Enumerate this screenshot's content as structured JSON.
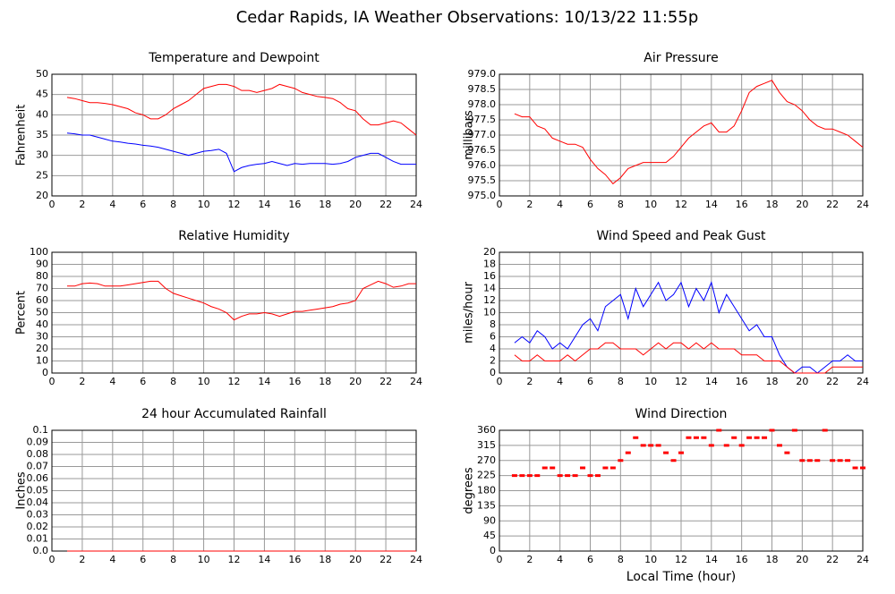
{
  "title": "Cedar Rapids, IA Weather Observations: 10/13/22 11:55p",
  "chart_data": [
    {
      "type": "line",
      "title": "Temperature and Dewpoint",
      "ylabel": "Fahrenheit",
      "xlim": [
        0,
        24
      ],
      "xticks": [
        0,
        2,
        4,
        6,
        8,
        10,
        12,
        14,
        16,
        18,
        20,
        22,
        24
      ],
      "ylim": [
        20,
        50
      ],
      "yticks": [
        20,
        25,
        30,
        35,
        40,
        45,
        50
      ],
      "grid": true,
      "x": [
        1,
        1.5,
        2,
        2.5,
        3,
        3.5,
        4,
        4.5,
        5,
        5.5,
        6,
        6.5,
        7,
        7.5,
        8,
        8.5,
        9,
        9.5,
        10,
        10.5,
        11,
        11.5,
        12,
        12.5,
        13,
        13.5,
        14,
        14.5,
        15,
        15.5,
        16,
        16.5,
        17,
        17.5,
        18,
        18.5,
        19,
        19.5,
        20,
        20.5,
        21,
        21.5,
        22,
        22.5,
        23,
        23.5,
        24
      ],
      "series": [
        {
          "color": "#ff0000",
          "values": [
            44.3,
            44,
            43.5,
            43,
            43,
            42.8,
            42.5,
            42,
            41.5,
            40.5,
            40,
            39,
            39,
            40,
            41.5,
            42.5,
            43.5,
            45,
            46.5,
            47,
            47.5,
            47.5,
            47,
            46,
            46,
            45.5,
            46,
            46.5,
            47.5,
            47,
            46.5,
            45.5,
            45,
            44.5,
            44.3,
            44,
            43,
            41.5,
            41,
            39,
            37.5,
            37.5,
            38,
            38.5,
            38,
            36.5,
            35
          ]
        },
        {
          "color": "#0000ff",
          "values": [
            35.5,
            35.3,
            35,
            35,
            34.5,
            34,
            33.5,
            33.3,
            33,
            32.8,
            32.5,
            32.3,
            32,
            31.5,
            31,
            30.5,
            30,
            30.5,
            31,
            31.2,
            31.5,
            30.5,
            26,
            27,
            27.5,
            27.8,
            28,
            28.5,
            28,
            27.5,
            28,
            27.8,
            28,
            28,
            28,
            27.8,
            28,
            28.5,
            29.5,
            30,
            30.5,
            30.5,
            29.5,
            28.5,
            27.8,
            27.8,
            27.8
          ]
        }
      ]
    },
    {
      "type": "line",
      "title": "Air Pressure",
      "ylabel": "millibars",
      "xlim": [
        0,
        24
      ],
      "xticks": [
        0,
        2,
        4,
        6,
        8,
        10,
        12,
        14,
        16,
        18,
        20,
        22,
        24
      ],
      "ylim": [
        975,
        979
      ],
      "yticks": [
        {
          "value": 975,
          "label": "975.0"
        },
        975.5,
        {
          "value": 976,
          "label": "976.0"
        },
        976.5,
        {
          "value": 977,
          "label": "977.0"
        },
        977.5,
        {
          "value": 978,
          "label": "978.0"
        },
        978.5,
        {
          "value": 979,
          "label": "979.0"
        }
      ],
      "grid": true,
      "x": [
        1,
        1.5,
        2,
        2.5,
        3,
        3.5,
        4,
        4.5,
        5,
        5.5,
        6,
        6.5,
        7,
        7.5,
        8,
        8.5,
        9,
        9.5,
        10,
        10.5,
        11,
        11.5,
        12,
        12.5,
        13,
        13.5,
        14,
        14.5,
        15,
        15.5,
        16,
        16.5,
        17,
        17.5,
        18,
        18.5,
        19,
        19.5,
        20,
        20.5,
        21,
        21.5,
        22,
        22.5,
        23,
        23.5,
        24
      ],
      "series": [
        {
          "color": "#ff0000",
          "values": [
            977.7,
            977.6,
            977.6,
            977.3,
            977.2,
            976.9,
            976.8,
            976.7,
            976.7,
            976.6,
            976.2,
            975.9,
            975.7,
            975.4,
            975.6,
            975.9,
            976,
            976.1,
            976.1,
            976.1,
            976.1,
            976.3,
            976.6,
            976.9,
            977.1,
            977.3,
            977.4,
            977.1,
            977.1,
            977.3,
            977.8,
            978.4,
            978.6,
            978.7,
            978.8,
            978.4,
            978.1,
            978,
            977.8,
            977.5,
            977.3,
            977.2,
            977.2,
            977.1,
            977,
            976.8,
            976.6
          ]
        }
      ]
    },
    {
      "type": "line",
      "title": "Relative Humidity",
      "ylabel": "Percent",
      "xlim": [
        0,
        24
      ],
      "xticks": [
        0,
        2,
        4,
        6,
        8,
        10,
        12,
        14,
        16,
        18,
        20,
        22,
        24
      ],
      "ylim": [
        0,
        100
      ],
      "yticks": [
        0,
        10,
        20,
        30,
        40,
        50,
        60,
        70,
        80,
        90,
        100
      ],
      "grid": true,
      "x": [
        1,
        1.5,
        2,
        2.5,
        3,
        3.5,
        4,
        4.5,
        5,
        5.5,
        6,
        6.5,
        7,
        7.5,
        8,
        8.5,
        9,
        9.5,
        10,
        10.5,
        11,
        11.5,
        12,
        12.5,
        13,
        13.5,
        14,
        14.5,
        15,
        15.5,
        16,
        16.5,
        17,
        17.5,
        18,
        18.5,
        19,
        19.5,
        20,
        20.5,
        21,
        21.5,
        22,
        22.5,
        23,
        23.5,
        24
      ],
      "series": [
        {
          "color": "#ff0000",
          "values": [
            72,
            72,
            74,
            74.5,
            74,
            72,
            72,
            72,
            73,
            74,
            75,
            76,
            76,
            70,
            66,
            64,
            62,
            60,
            58,
            55,
            53,
            50,
            44,
            47,
            49,
            49,
            50,
            49,
            47,
            49,
            51,
            51,
            52,
            53,
            54,
            55,
            57,
            58,
            60,
            70,
            73,
            76,
            74,
            71,
            72,
            74,
            74
          ]
        }
      ]
    },
    {
      "type": "line",
      "title": "Wind Speed and Peak Gust",
      "ylabel": "miles/hour",
      "xlim": [
        0,
        24
      ],
      "xticks": [
        0,
        2,
        4,
        6,
        8,
        10,
        12,
        14,
        16,
        18,
        20,
        22,
        24
      ],
      "ylim": [
        0,
        20
      ],
      "yticks": [
        0,
        2,
        4,
        6,
        8,
        10,
        12,
        14,
        16,
        18,
        20
      ],
      "grid": true,
      "x": [
        1,
        1.5,
        2,
        2.5,
        3,
        3.5,
        4,
        4.5,
        5,
        5.5,
        6,
        6.5,
        7,
        7.5,
        8,
        8.5,
        9,
        9.5,
        10,
        10.5,
        11,
        11.5,
        12,
        12.5,
        13,
        13.5,
        14,
        14.5,
        15,
        15.5,
        16,
        16.5,
        17,
        17.5,
        18,
        18.5,
        19,
        19.5,
        20,
        20.5,
        21,
        21.5,
        22,
        22.5,
        23,
        23.5,
        24
      ],
      "series": [
        {
          "color": "#0000ff",
          "values": [
            5,
            6,
            5,
            7,
            6,
            4,
            5,
            4,
            6,
            8,
            9,
            7,
            11,
            12,
            13,
            9,
            14,
            11,
            13,
            15,
            12,
            13,
            15,
            11,
            14,
            12,
            15,
            10,
            13,
            11,
            9,
            7,
            8,
            6,
            6,
            3,
            1,
            0,
            1,
            1,
            0,
            1,
            2,
            2,
            3,
            2,
            2
          ]
        },
        {
          "color": "#ff0000",
          "values": [
            3,
            2,
            2,
            3,
            2,
            2,
            2,
            3,
            2,
            3,
            4,
            4,
            5,
            5,
            4,
            4,
            4,
            3,
            4,
            5,
            4,
            5,
            5,
            4,
            5,
            4,
            5,
            4,
            4,
            4,
            3,
            3,
            3,
            2,
            2,
            2,
            1,
            0,
            0,
            0,
            0,
            0,
            1,
            1,
            1,
            1,
            1
          ]
        }
      ]
    },
    {
      "type": "line",
      "title": "24 hour Accumulated Rainfall",
      "ylabel": "Inches",
      "xlim": [
        0,
        24
      ],
      "xticks": [
        0,
        2,
        4,
        6,
        8,
        10,
        12,
        14,
        16,
        18,
        20,
        22,
        24
      ],
      "ylim": [
        0,
        0.1
      ],
      "yticks": [
        {
          "value": 0,
          "label": "0.0"
        },
        0.01,
        0.02,
        0.03,
        0.04,
        0.05,
        0.06,
        0.07,
        0.08,
        0.09,
        0.1
      ],
      "grid": true,
      "x": [
        1,
        24
      ],
      "series": [
        {
          "color": "#ff0000",
          "values": [
            0,
            0
          ]
        }
      ]
    },
    {
      "type": "scatter",
      "title": "Wind Direction",
      "ylabel": "degrees",
      "xlabel": "Local Time (hour)",
      "xlim": [
        0,
        24
      ],
      "xticks": [
        0,
        2,
        4,
        6,
        8,
        10,
        12,
        14,
        16,
        18,
        20,
        22,
        24
      ],
      "ylim": [
        0,
        360
      ],
      "yticks": [
        0,
        45,
        90,
        135,
        180,
        225,
        270,
        315,
        360
      ],
      "grid": true,
      "x": [
        1,
        1.5,
        2,
        2.5,
        3,
        3.5,
        4,
        4.5,
        5,
        5.5,
        6,
        6.5,
        7,
        7.5,
        8,
        8.5,
        9,
        9.5,
        10,
        10.5,
        11,
        11.5,
        12,
        12.5,
        13,
        13.5,
        14,
        14.5,
        15,
        15.5,
        16,
        16.5,
        17,
        17.5,
        18,
        18.5,
        19,
        19.5,
        20,
        20.5,
        21,
        21.5,
        22,
        22.5,
        23,
        23.5,
        24
      ],
      "series": [
        {
          "color": "#ff0000",
          "values": [
            225,
            225,
            225,
            225,
            248,
            248,
            225,
            225,
            225,
            248,
            225,
            225,
            248,
            248,
            270,
            293,
            338,
            315,
            315,
            315,
            293,
            270,
            293,
            338,
            338,
            338,
            315,
            360,
            315,
            338,
            315,
            338,
            338,
            338,
            360,
            315,
            293,
            360,
            270,
            270,
            270,
            360,
            270,
            270,
            270,
            248,
            248
          ]
        }
      ]
    }
  ]
}
